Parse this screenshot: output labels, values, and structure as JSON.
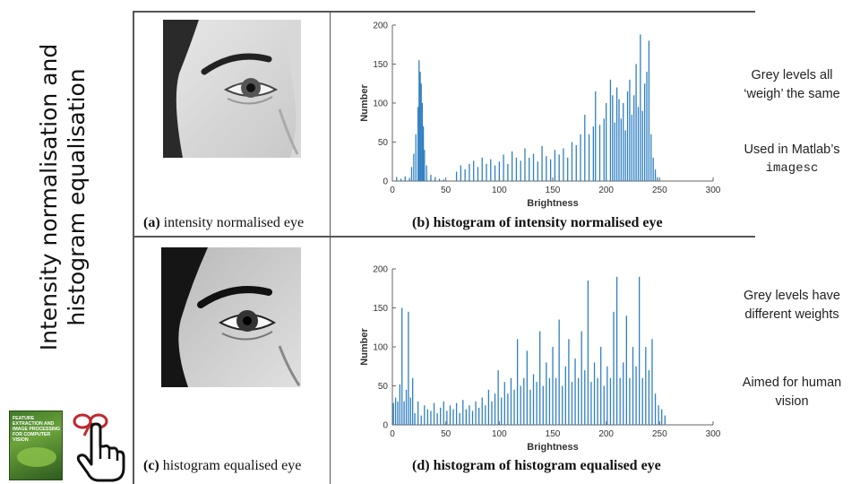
{
  "side_title": {
    "line1": "Intensity normalisation and",
    "line2": "histogram equalisation"
  },
  "book_cover": {
    "title": "FEATURE EXTRACTION and IMAGE PROCESSING for COMPUTER VISION"
  },
  "panels": {
    "a": {
      "label": "(a)",
      "caption": "intensity normalised eye"
    },
    "b": {
      "label": "(b)",
      "caption": "histogram of intensity normalised eye"
    },
    "c": {
      "label": "(c)",
      "caption": "histogram equalised eye"
    },
    "d": {
      "label": "(d)",
      "caption": "histogram of histogram equalised eye"
    }
  },
  "notes": {
    "grey_same": "Grey levels all ‘weigh’ the same",
    "used_in_prefix": "Used in Matlab’s",
    "used_in_func": "imagesc",
    "grey_diff": "Grey levels have different weights",
    "aimed": "Aimed for human vision"
  },
  "colors": {
    "bar": "#2f7fc1",
    "frame": "#555555"
  },
  "chart_data": [
    {
      "type": "bar",
      "title": "histogram of intensity normalised eye",
      "xlabel": "Brightness",
      "ylabel": "Number",
      "xlim": [
        0,
        300
      ],
      "ylim": [
        0,
        200
      ],
      "xticks": [
        0,
        50,
        100,
        150,
        200,
        250,
        300
      ],
      "yticks": [
        0,
        50,
        100,
        150,
        200
      ],
      "peaks": [
        [
          4,
          5
        ],
        [
          8,
          3
        ],
        [
          12,
          6
        ],
        [
          16,
          4
        ],
        [
          18,
          18
        ],
        [
          20,
          35
        ],
        [
          22,
          60
        ],
        [
          24,
          95
        ],
        [
          25,
          155
        ],
        [
          26,
          140
        ],
        [
          27,
          125
        ],
        [
          28,
          100
        ],
        [
          29,
          70
        ],
        [
          30,
          40
        ],
        [
          32,
          20
        ],
        [
          36,
          8
        ],
        [
          40,
          5
        ],
        [
          44,
          3
        ],
        [
          48,
          2
        ],
        [
          60,
          12
        ],
        [
          64,
          20
        ],
        [
          68,
          15
        ],
        [
          72,
          22
        ],
        [
          76,
          26
        ],
        [
          80,
          18
        ],
        [
          84,
          30
        ],
        [
          88,
          22
        ],
        [
          92,
          28
        ],
        [
          96,
          20
        ],
        [
          100,
          25
        ],
        [
          104,
          34
        ],
        [
          108,
          22
        ],
        [
          112,
          38
        ],
        [
          116,
          30
        ],
        [
          120,
          26
        ],
        [
          124,
          42
        ],
        [
          128,
          30
        ],
        [
          132,
          35
        ],
        [
          136,
          25
        ],
        [
          140,
          45
        ],
        [
          144,
          32
        ],
        [
          148,
          28
        ],
        [
          152,
          40
        ],
        [
          156,
          34
        ],
        [
          160,
          42
        ],
        [
          164,
          30
        ],
        [
          168,
          50
        ],
        [
          172,
          46
        ],
        [
          176,
          60
        ],
        [
          180,
          85
        ],
        [
          184,
          60
        ],
        [
          188,
          70
        ],
        [
          190,
          115
        ],
        [
          194,
          72
        ],
        [
          198,
          80
        ],
        [
          200,
          100
        ],
        [
          204,
          130
        ],
        [
          206,
          110
        ],
        [
          208,
          75
        ],
        [
          210,
          120
        ],
        [
          212,
          105
        ],
        [
          214,
          80
        ],
        [
          216,
          100
        ],
        [
          218,
          65
        ],
        [
          220,
          115
        ],
        [
          222,
          130
        ],
        [
          224,
          85
        ],
        [
          226,
          110
        ],
        [
          228,
          150
        ],
        [
          230,
          95
        ],
        [
          232,
          188
        ],
        [
          234,
          90
        ],
        [
          236,
          125
        ],
        [
          238,
          140
        ],
        [
          240,
          180
        ],
        [
          242,
          60
        ],
        [
          244,
          30
        ],
        [
          246,
          15
        ],
        [
          248,
          5
        ]
      ]
    },
    {
      "type": "bar",
      "title": "histogram of histogram equalised eye",
      "xlabel": "Brightness",
      "ylabel": "Number",
      "xlim": [
        0,
        300
      ],
      "ylim": [
        0,
        200
      ],
      "xticks": [
        0,
        50,
        100,
        150,
        200,
        250,
        300
      ],
      "yticks": [
        0,
        50,
        100,
        150,
        200
      ],
      "peaks": [
        [
          1,
          28
        ],
        [
          3,
          35
        ],
        [
          5,
          30
        ],
        [
          7,
          52
        ],
        [
          9,
          150
        ],
        [
          11,
          30
        ],
        [
          13,
          45
        ],
        [
          15,
          145
        ],
        [
          17,
          35
        ],
        [
          19,
          60
        ],
        [
          21,
          15
        ],
        [
          24,
          30
        ],
        [
          27,
          12
        ],
        [
          30,
          25
        ],
        [
          33,
          20
        ],
        [
          36,
          18
        ],
        [
          39,
          28
        ],
        [
          42,
          15
        ],
        [
          45,
          22
        ],
        [
          48,
          30
        ],
        [
          51,
          18
        ],
        [
          54,
          25
        ],
        [
          57,
          20
        ],
        [
          60,
          28
        ],
        [
          63,
          15
        ],
        [
          66,
          32
        ],
        [
          69,
          20
        ],
        [
          72,
          25
        ],
        [
          75,
          18
        ],
        [
          78,
          30
        ],
        [
          81,
          22
        ],
        [
          84,
          35
        ],
        [
          87,
          25
        ],
        [
          90,
          45
        ],
        [
          93,
          30
        ],
        [
          96,
          40
        ],
        [
          99,
          70
        ],
        [
          102,
          35
        ],
        [
          105,
          55
        ],
        [
          108,
          40
        ],
        [
          111,
          60
        ],
        [
          114,
          45
        ],
        [
          117,
          110
        ],
        [
          120,
          50
        ],
        [
          123,
          60
        ],
        [
          126,
          95
        ],
        [
          129,
          45
        ],
        [
          132,
          65
        ],
        [
          135,
          55
        ],
        [
          138,
          120
        ],
        [
          141,
          50
        ],
        [
          144,
          80
        ],
        [
          147,
          60
        ],
        [
          150,
          100
        ],
        [
          153,
          60
        ],
        [
          156,
          135
        ],
        [
          159,
          50
        ],
        [
          162,
          75
        ],
        [
          165,
          110
        ],
        [
          168,
          55
        ],
        [
          171,
          85
        ],
        [
          174,
          60
        ],
        [
          177,
          120
        ],
        [
          180,
          70
        ],
        [
          183,
          185
        ],
        [
          186,
          55
        ],
        [
          189,
          80
        ],
        [
          192,
          60
        ],
        [
          195,
          100
        ],
        [
          198,
          50
        ],
        [
          201,
          75
        ],
        [
          204,
          60
        ],
        [
          207,
          145
        ],
        [
          210,
          190
        ],
        [
          213,
          60
        ],
        [
          216,
          80
        ],
        [
          219,
          140
        ],
        [
          222,
          60
        ],
        [
          225,
          100
        ],
        [
          228,
          75
        ],
        [
          231,
          190
        ],
        [
          234,
          60
        ],
        [
          237,
          100
        ],
        [
          240,
          70
        ],
        [
          243,
          110
        ],
        [
          246,
          40
        ],
        [
          249,
          25
        ],
        [
          252,
          20
        ],
        [
          255,
          12
        ]
      ]
    }
  ]
}
